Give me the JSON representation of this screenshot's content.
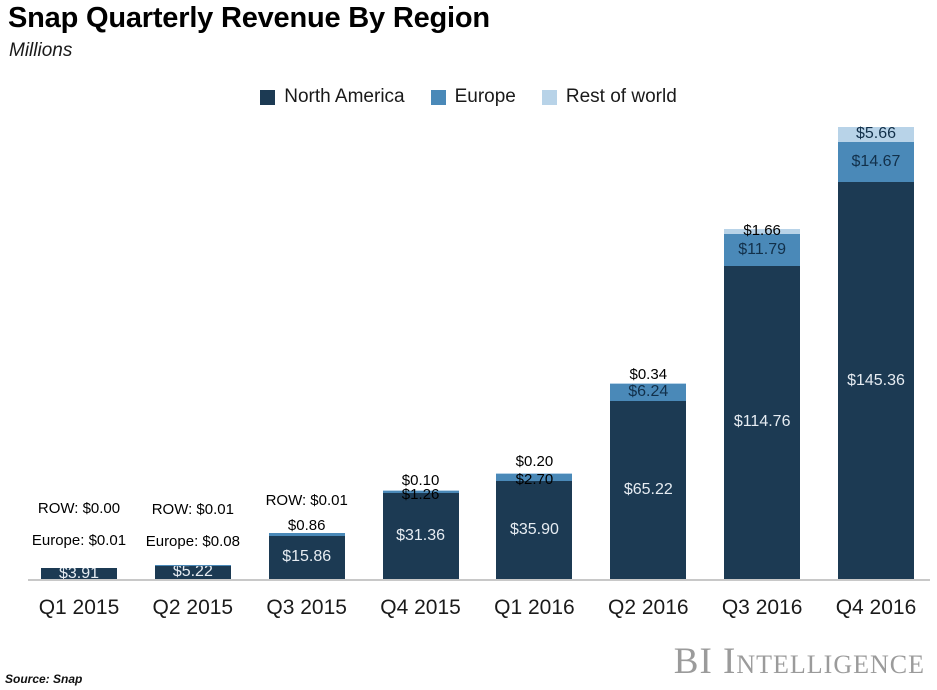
{
  "header": {
    "title": "Snap Quarterly Revenue By Region",
    "subtitle": "Millions"
  },
  "chart_data": {
    "type": "bar",
    "stacked": true,
    "title": "Snap Quarterly Revenue By Region",
    "subtitle": "Millions",
    "unit_label": "Millions",
    "legend_position": "top-center",
    "grid": false,
    "categories": [
      "Q1 2015",
      "Q2 2015",
      "Q3 2015",
      "Q4 2015",
      "Q1 2016",
      "Q2 2016",
      "Q3 2016",
      "Q4 2016"
    ],
    "series": [
      {
        "name": "North America",
        "color": "#1c3a53",
        "values": [
          3.91,
          5.22,
          15.86,
          31.36,
          35.9,
          65.22,
          114.76,
          145.36
        ]
      },
      {
        "name": "Europe",
        "color": "#4a89b8",
        "values": [
          0.01,
          0.08,
          0.86,
          1.26,
          2.7,
          6.24,
          11.79,
          14.67
        ]
      },
      {
        "name": "Rest of world",
        "color": "#b8d3e8",
        "values": [
          0.0,
          0.01,
          0.01,
          0.1,
          0.2,
          0.34,
          1.66,
          5.66
        ]
      }
    ],
    "value_labels": [
      [
        {
          "text": "ROW: $0.00",
          "placement": "above",
          "dy": -59
        },
        {
          "text": "Europe: $0.01",
          "placement": "above",
          "dy": -27
        },
        {
          "text": "$3.91",
          "placement": "inside-na"
        }
      ],
      [
        {
          "text": "ROW: $0.01",
          "placement": "above",
          "dy": -55
        },
        {
          "text": "Europe: $0.08",
          "placement": "above",
          "dy": -23
        },
        {
          "text": "$5.22",
          "placement": "inside-na"
        }
      ],
      [
        {
          "text": "ROW: $0.01",
          "placement": "above",
          "dy": -32
        },
        {
          "text": "$0.86",
          "placement": "above",
          "dy": -7
        },
        {
          "text": "$15.86",
          "placement": "inside-na"
        }
      ],
      [
        {
          "text": "$0.10",
          "placement": "above",
          "dy": -9
        },
        {
          "text": "$1.26",
          "placement": "above",
          "dy": 5
        },
        {
          "text": "$31.36",
          "placement": "inside-na"
        }
      ],
      [
        {
          "text": "$0.20",
          "placement": "above",
          "dy": -11
        },
        {
          "text": "$2.70",
          "placement": "above",
          "dy": 7
        },
        {
          "text": "$35.90",
          "placement": "inside-na"
        }
      ],
      [
        {
          "text": "$0.34",
          "placement": "above",
          "dy": -8
        },
        {
          "text": "$6.24",
          "placement": "inside-eu"
        },
        {
          "text": "$65.22",
          "placement": "inside-na"
        }
      ],
      [
        {
          "text": "$1.66",
          "placement": "above",
          "dy": 2
        },
        {
          "text": "$11.79",
          "placement": "inside-eu"
        },
        {
          "text": "$114.76",
          "placement": "inside-na"
        }
      ],
      [
        {
          "text": "$5.66",
          "placement": "inside-row"
        },
        {
          "text": "$14.67",
          "placement": "inside-eu"
        },
        {
          "text": "$145.36",
          "placement": "inside-na"
        }
      ]
    ]
  },
  "footer": {
    "source": "Source: Snap",
    "brand": "BI Intelligence"
  }
}
